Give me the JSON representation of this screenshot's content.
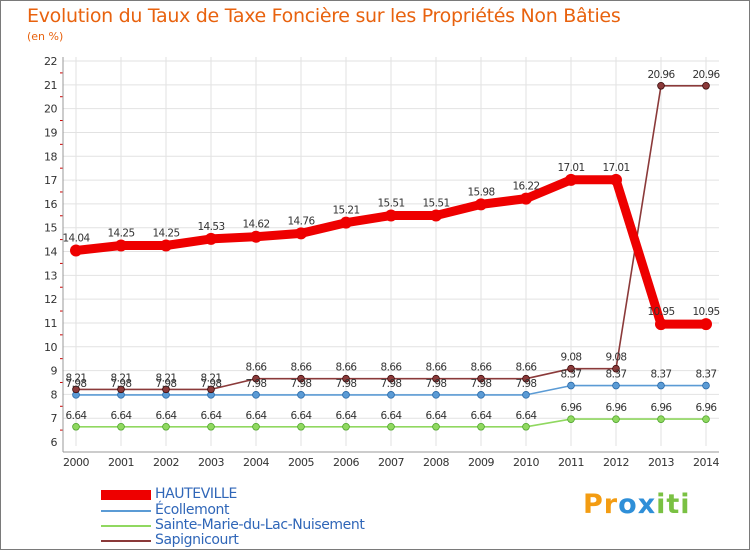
{
  "chart_data": {
    "type": "line",
    "title": "Evolution du Taux de Taxe Foncière sur les Propriétés Non Bâties",
    "ylabel": "(en %)",
    "xlabel": "",
    "ylim": [
      6,
      22
    ],
    "yticks": [
      "6",
      "7",
      "8",
      "9",
      "10",
      "11",
      "12",
      "13",
      "14",
      "15",
      "16",
      "17",
      "18",
      "19",
      "20",
      "21",
      "22"
    ],
    "x": [
      "2000",
      "2001",
      "2002",
      "2003",
      "2004",
      "2005",
      "2006",
      "2007",
      "2008",
      "2009",
      "2010",
      "2011",
      "2012",
      "2013",
      "2014"
    ],
    "series": [
      {
        "name": "HAUTEVILLE",
        "color": "#ee0000",
        "values": [
          14.04,
          14.25,
          14.25,
          14.53,
          14.62,
          14.76,
          15.21,
          15.51,
          15.51,
          15.98,
          16.22,
          17.01,
          17.01,
          10.95,
          10.95
        ],
        "labels": [
          "14.04",
          "14.25",
          "14.25",
          "14.53",
          "14.62",
          "14.76",
          "15.21",
          "15.51",
          "15.51",
          "15.98",
          "16.22",
          "17.01",
          "17.01",
          "10.95",
          "10.95"
        ]
      },
      {
        "name": "Écollemont",
        "color": "#5b9bd5",
        "values": [
          7.98,
          7.98,
          7.98,
          7.98,
          7.98,
          7.98,
          7.98,
          7.98,
          7.98,
          7.98,
          7.98,
          8.37,
          8.37,
          8.37,
          8.37
        ],
        "labels": [
          "7.98",
          "7.98",
          "7.98",
          "7.98",
          "7.98",
          "7.98",
          "7.98",
          "7.98",
          "7.98",
          "7.98",
          "7.98",
          "8.37",
          "8.37",
          "8.37",
          "8.37"
        ]
      },
      {
        "name": "Sainte-Marie-du-Lac-Nuisement",
        "color": "#90d860",
        "values": [
          6.64,
          6.64,
          6.64,
          6.64,
          6.64,
          6.64,
          6.64,
          6.64,
          6.64,
          6.64,
          6.64,
          6.96,
          6.96,
          6.96,
          6.96
        ],
        "labels": [
          "6.64",
          "6.64",
          "6.64",
          "6.64",
          "6.64",
          "6.64",
          "6.64",
          "6.64",
          "6.64",
          "6.64",
          "6.64",
          "6.96",
          "6.96",
          "6.96",
          "6.96"
        ]
      },
      {
        "name": "Sapignicourt",
        "color": "#8b3a3a",
        "values": [
          8.21,
          8.21,
          8.21,
          8.21,
          8.66,
          8.66,
          8.66,
          8.66,
          8.66,
          8.66,
          8.66,
          9.08,
          9.08,
          20.96,
          20.96
        ],
        "labels": [
          "8.21",
          "8.21",
          "8.21",
          "8.21",
          "8.66",
          "8.66",
          "8.66",
          "8.66",
          "8.66",
          "8.66",
          "8.66",
          "9.08",
          "9.08",
          "20.96",
          "20.96"
        ]
      }
    ],
    "legend_position": "bottom-left"
  },
  "branding": {
    "logo_letters": [
      "P",
      "r",
      "o",
      "x",
      "i",
      "t",
      "i"
    ],
    "logo_colors": [
      "#f39c12",
      "#f39c12",
      "#2f8fd8",
      "#2f8fd8",
      "#7ac143",
      "#7ac143",
      "#7ac143"
    ]
  }
}
